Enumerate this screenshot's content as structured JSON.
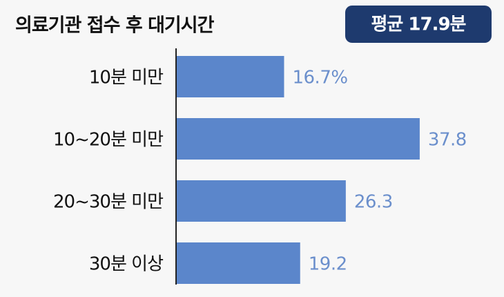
{
  "chart_data": {
    "type": "bar",
    "orientation": "horizontal",
    "title": "의료기관 접수 후 대기시간",
    "annotation": "평균 17.9분",
    "categories": [
      "10분 미만",
      "10~20분 미만",
      "20~30분 미만",
      "30분 이상"
    ],
    "values": [
      16.7,
      37.8,
      26.3,
      19.2
    ],
    "value_labels": [
      "16.7%",
      "37.8",
      "26.3",
      "19.2"
    ],
    "color": "#5b86cb"
  }
}
